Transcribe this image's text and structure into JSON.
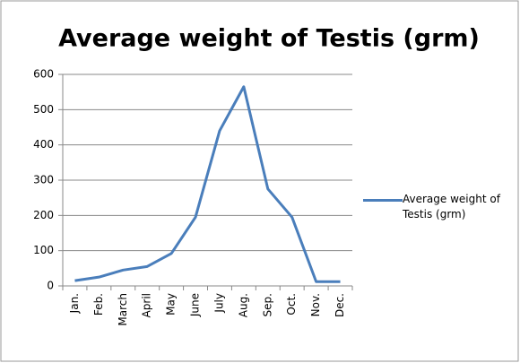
{
  "chart_data": {
    "type": "line",
    "title": "Average  weight of Testis (grm)",
    "categories": [
      "Jan.",
      "Feb.",
      "March",
      "April",
      "May",
      "June",
      "July",
      "Aug.",
      "Sep.",
      "Oct.",
      "Nov.",
      "Dec."
    ],
    "series": [
      {
        "name": "Average  weight of Testis (grm)",
        "color": "#4a7ebb",
        "values": [
          15,
          25,
          45,
          55,
          92,
          195,
          440,
          565,
          275,
          195,
          12,
          12
        ]
      }
    ],
    "ylim": [
      0,
      600
    ],
    "yticks": [
      0,
      100,
      200,
      300,
      400,
      500,
      600
    ],
    "grid": true,
    "legend": "right"
  }
}
